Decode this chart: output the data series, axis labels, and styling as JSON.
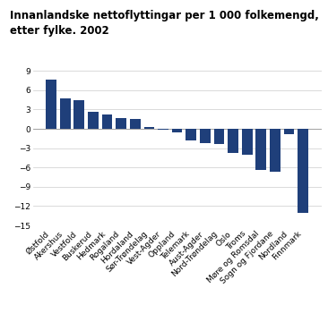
{
  "title": "Innanlandske nettoflyttingar per 1 000 folkemengd,\netter fylke. 2002",
  "categories": [
    "Østfold",
    "Akershus",
    "Vestfold",
    "Buskerud",
    "Hedmark",
    "Rogaland",
    "Hordaland",
    "Sør-Trøndelag",
    "Vest-Agder",
    "Oppland",
    "Telemark",
    "Aust-Agder",
    "Nord-Trøndelag",
    "Oslo",
    "Troms",
    "Møre og Romsdal",
    "Sogn og Fjordane",
    "Nordland",
    "Finnmark"
  ],
  "values": [
    7.7,
    4.7,
    4.5,
    2.7,
    2.2,
    1.6,
    1.5,
    0.3,
    -0.1,
    -0.5,
    -1.8,
    -2.2,
    -2.3,
    -3.7,
    -4.0,
    -6.4,
    -6.7,
    -0.8,
    -13.0
  ],
  "bar_color": "#1f3f7a",
  "ylim": [
    -15,
    10
  ],
  "yticks": [
    -15,
    -12,
    -9,
    -6,
    -3,
    0,
    3,
    6,
    9
  ],
  "background_color": "#ffffff",
  "grid_color": "#cccccc",
  "title_fontsize": 8.5,
  "tick_fontsize": 6.5
}
